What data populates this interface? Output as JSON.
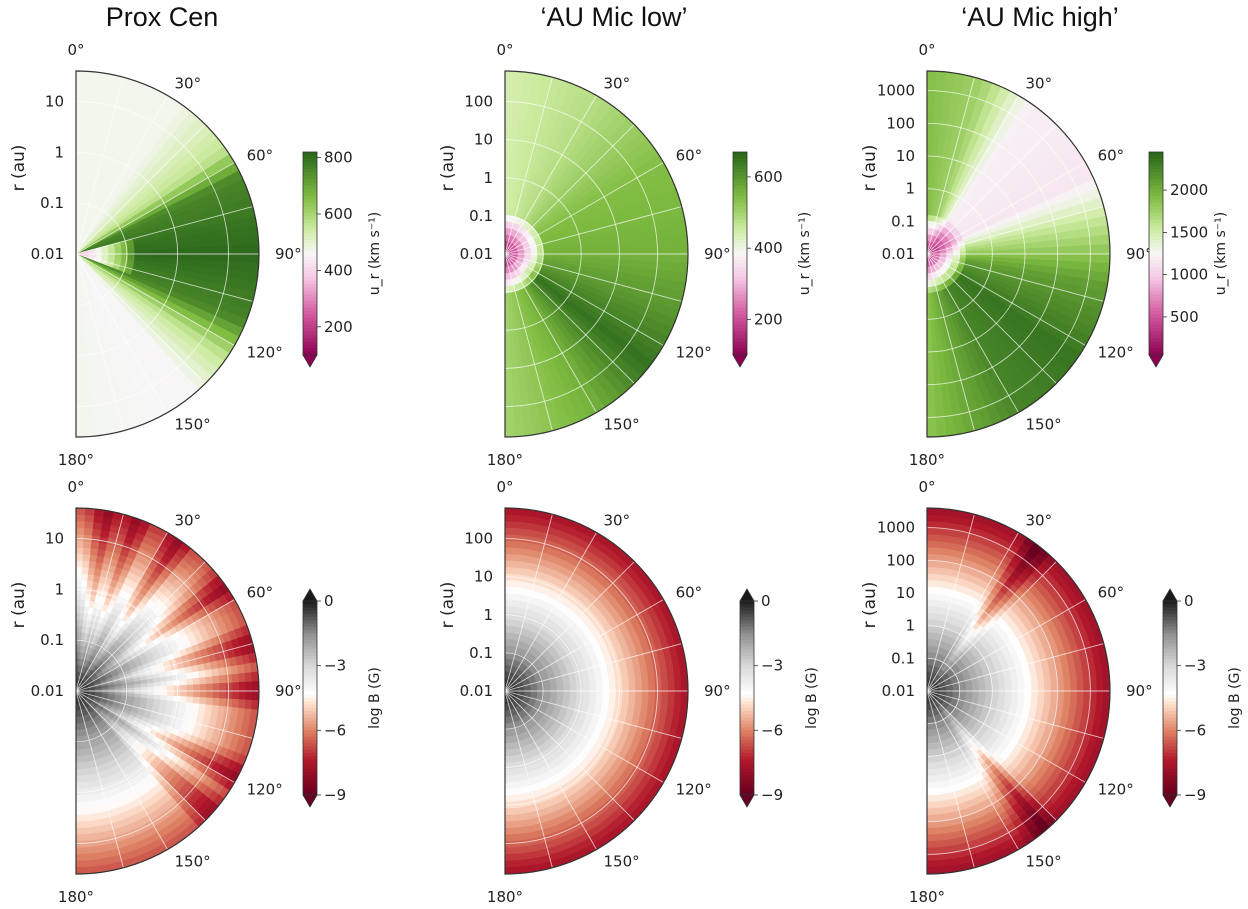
{
  "figure": {
    "column_titles": [
      "Prox Cen",
      "‘AU Mic low’",
      "‘AU Mic high’"
    ]
  },
  "chart_data": [
    {
      "type": "heatmap",
      "projection": "polar-half",
      "row": "velocity",
      "case": "Prox Cen",
      "ylabel": "r (au)",
      "r_ticks": [
        "0.01",
        "0.1",
        "1",
        "10"
      ],
      "r_decades": 3.6,
      "theta_ticks": [
        "0°",
        "30°",
        "60°",
        "90°",
        "120°",
        "150°",
        "180°"
      ],
      "colorbar": {
        "label": "u_r (km s⁻¹)",
        "colormap": "PiYG",
        "range": [
          100,
          820
        ],
        "ticks": [
          "200",
          "400",
          "600",
          "800"
        ],
        "extend": "min"
      },
      "field": {
        "bands": [
          {
            "theta": 0,
            "value": 470
          },
          {
            "theta": 35,
            "value": 470
          },
          {
            "theta": 55,
            "value": 560
          },
          {
            "theta": 65,
            "value": 760
          },
          {
            "theta": 90,
            "value": 810
          },
          {
            "theta": 112,
            "value": 760
          },
          {
            "theta": 125,
            "value": 560
          },
          {
            "theta": 140,
            "value": 455
          },
          {
            "theta": 180,
            "value": 470
          }
        ],
        "inner_value": 320,
        "inner_extent_theta": [
          75,
          112
        ],
        "inner_r_decade": 0.55
      }
    },
    {
      "type": "heatmap",
      "projection": "polar-half",
      "row": "velocity",
      "case": "AU Mic low",
      "ylabel": "r (au)",
      "r_ticks": [
        "0.01",
        "0.1",
        "1",
        "10",
        "100"
      ],
      "r_decades": 4.8,
      "theta_ticks": [
        "0°",
        "30°",
        "60°",
        "90°",
        "120°",
        "150°",
        "180°"
      ],
      "colorbar": {
        "label": "u_r (km s⁻¹)",
        "colormap": "PiYG",
        "range": [
          100,
          670
        ],
        "ticks": [
          "200",
          "400",
          "600"
        ],
        "extend": "min"
      },
      "field": {
        "bands": [
          {
            "theta": 0,
            "value": 440
          },
          {
            "theta": 30,
            "value": 480
          },
          {
            "theta": 60,
            "value": 540
          },
          {
            "theta": 90,
            "value": 560
          },
          {
            "theta": 110,
            "value": 600
          },
          {
            "theta": 128,
            "value": 650
          },
          {
            "theta": 150,
            "value": 560
          },
          {
            "theta": 180,
            "value": 500
          }
        ],
        "inner_value": 130,
        "inner_extent_theta": [
          0,
          180
        ],
        "inner_r_decade": 0.5
      }
    },
    {
      "type": "heatmap",
      "projection": "polar-half",
      "row": "velocity",
      "case": "AU Mic high",
      "ylabel": "r (au)",
      "r_ticks": [
        "0.01",
        "0.1",
        "1",
        "10",
        "100",
        "1000"
      ],
      "r_decades": 5.6,
      "theta_ticks": [
        "0°",
        "30°",
        "60°",
        "90°",
        "120°",
        "150°",
        "180°"
      ],
      "colorbar": {
        "label": "u_r (km s⁻¹)",
        "colormap": "PiYG",
        "range": [
          50,
          2450
        ],
        "ticks": [
          "500",
          "1000",
          "1500",
          "2000"
        ],
        "extend": "min"
      },
      "field": {
        "bands": [
          {
            "theta": 0,
            "value": 1900
          },
          {
            "theta": 18,
            "value": 1750
          },
          {
            "theta": 35,
            "value": 1200
          },
          {
            "theta": 65,
            "value": 1150
          },
          {
            "theta": 80,
            "value": 1600
          },
          {
            "theta": 100,
            "value": 2100
          },
          {
            "theta": 125,
            "value": 2350
          },
          {
            "theta": 150,
            "value": 2250
          },
          {
            "theta": 180,
            "value": 1850
          }
        ],
        "inner_value": 200,
        "inner_extent_theta": [
          0,
          180
        ],
        "inner_r_decade": 0.55
      }
    },
    {
      "type": "heatmap",
      "projection": "polar-half",
      "row": "magnetic",
      "case": "Prox Cen",
      "ylabel": "r (au)",
      "r_ticks": [
        "0.01",
        "0.1",
        "1",
        "10"
      ],
      "r_decades": 3.6,
      "theta_ticks": [
        "0°",
        "30°",
        "60°",
        "90°",
        "120°",
        "150°",
        "180°"
      ],
      "colorbar": {
        "label": "log B (G)",
        "colormap": "RdGy",
        "range": [
          -9,
          0
        ],
        "ticks": [
          "0",
          "−3",
          "−6",
          "−9"
        ],
        "extend": "both"
      },
      "field": {
        "logB_center": 0,
        "decay_per_decade": 1.85,
        "streaks": [
          10,
          20,
          34,
          55,
          75,
          90,
          118,
          132
        ]
      }
    },
    {
      "type": "heatmap",
      "projection": "polar-half",
      "row": "magnetic",
      "case": "AU Mic low",
      "ylabel": "r (au)",
      "r_ticks": [
        "0.01",
        "0.1",
        "1",
        "10",
        "100"
      ],
      "r_decades": 4.8,
      "theta_ticks": [
        "0°",
        "30°",
        "60°",
        "90°",
        "120°",
        "150°",
        "180°"
      ],
      "colorbar": {
        "label": "log B (G)",
        "colormap": "RdGy",
        "range": [
          -9,
          0
        ],
        "ticks": [
          "0",
          "−3",
          "−6",
          "−9"
        ],
        "extend": "both"
      },
      "field": {
        "logB_center": 0,
        "decay_per_decade": 1.6,
        "streaks": []
      }
    },
    {
      "type": "heatmap",
      "projection": "polar-half",
      "row": "magnetic",
      "case": "AU Mic high",
      "ylabel": "r (au)",
      "r_ticks": [
        "0.01",
        "0.1",
        "1",
        "10",
        "100",
        "1000"
      ],
      "r_decades": 5.6,
      "theta_ticks": [
        "0°",
        "30°",
        "60°",
        "90°",
        "120°",
        "150°",
        "180°"
      ],
      "colorbar": {
        "label": "log B (G)",
        "colormap": "RdGy",
        "range": [
          -9,
          0
        ],
        "ticks": [
          "0",
          "−3",
          "−6",
          "−9"
        ],
        "extend": "both"
      },
      "field": {
        "logB_center": 0,
        "decay_per_decade": 1.4,
        "streaks": [
          38,
          140
        ]
      }
    }
  ]
}
